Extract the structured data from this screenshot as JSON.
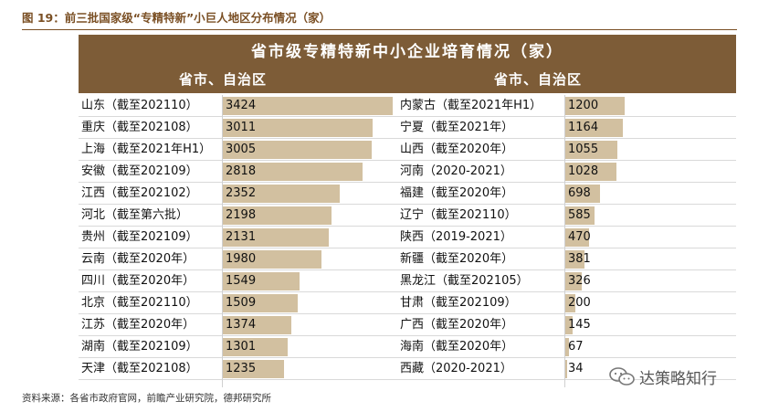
{
  "figure_title": "图 19：前三批国家级“专精特新”小巨人地区分布情况（家）",
  "source": "资料来源：各省市政府官网，前瞻产业研究院，德邦研究所",
  "watermark": "达策略知行",
  "colors": {
    "header_bg": "#7d5c37",
    "bar": "#d2c0a0",
    "title": "#7a4f24"
  },
  "chart_data": {
    "type": "table",
    "title": "省市级专精特新中小企业培育情况（家）",
    "column_headers": {
      "left": "省市、自治区",
      "right": "省市、自治区"
    },
    "max_value": 3424,
    "left": [
      {
        "name": "山东（截至202110）",
        "value": 3424
      },
      {
        "name": "重庆（截至202108）",
        "value": 3011
      },
      {
        "name": "上海（截至2021年H1）",
        "value": 3005
      },
      {
        "name": "安徽（截至202109）",
        "value": 2818
      },
      {
        "name": "江西（截至202102）",
        "value": 2352
      },
      {
        "name": "河北（截至第六批）",
        "value": 2198
      },
      {
        "name": "贵州（截至202109）",
        "value": 2131
      },
      {
        "name": "云南（截至2020年）",
        "value": 1980
      },
      {
        "name": "四川（截至2020年）",
        "value": 1549
      },
      {
        "name": "北京（截至202110）",
        "value": 1509
      },
      {
        "name": "江苏（截至2020年）",
        "value": 1374
      },
      {
        "name": "湖南（截至202109）",
        "value": 1301
      },
      {
        "name": "天津（截至202108）",
        "value": 1235
      }
    ],
    "right": [
      {
        "name": "内蒙古（截至2021年H1）",
        "value": 1200
      },
      {
        "name": "宁夏（截至2021年）",
        "value": 1164
      },
      {
        "name": "山西（截至2020年）",
        "value": 1055
      },
      {
        "name": "河南（2020-2021）",
        "value": 1028
      },
      {
        "name": "福建（截至2020年）",
        "value": 698
      },
      {
        "name": "辽宁（截至202110）",
        "value": 585
      },
      {
        "name": "陕西（2019-2021）",
        "value": 470
      },
      {
        "name": "新疆（截至2020年）",
        "value": 381
      },
      {
        "name": "黑龙江（截至202105）",
        "value": 326
      },
      {
        "name": "甘肃（截至202109）",
        "value": 200
      },
      {
        "name": "广西（截至2020年）",
        "value": 145
      },
      {
        "name": "海南（截至2020年）",
        "value": 67
      },
      {
        "name": "西藏（2020-2021）",
        "value": 34
      }
    ]
  }
}
